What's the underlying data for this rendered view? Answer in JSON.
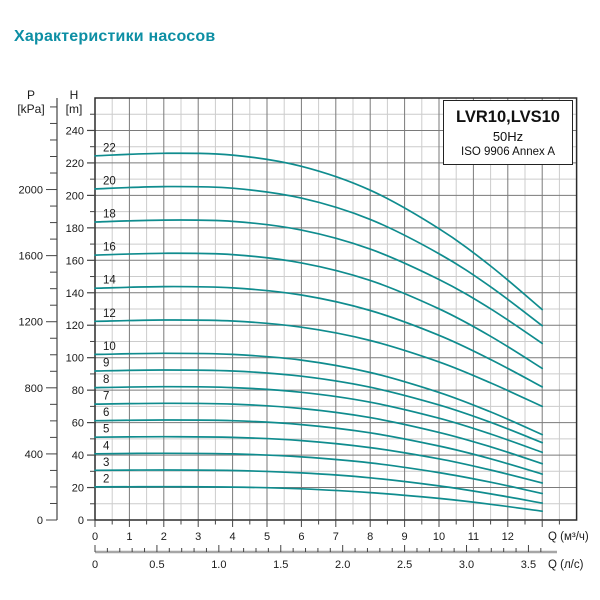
{
  "title": "Характеристики насосов",
  "info_box": {
    "model": "LVR10,LVS10",
    "frequency": "50Hz",
    "standard": "ISO 9906 Annex A"
  },
  "axes": {
    "pressure": {
      "name": "P",
      "unit": "[kPa]",
      "tick_labels": [
        0,
        400,
        800,
        1200,
        1600,
        2000
      ],
      "minor_step_kpa": 100,
      "axis_max_kpa": 2500
    },
    "head": {
      "name": "H",
      "unit": "[m]",
      "tick_labels": [
        0,
        20,
        40,
        60,
        80,
        100,
        120,
        140,
        160,
        180,
        200,
        220,
        240
      ],
      "minor_step_m": 10,
      "axis_max_m": 260
    },
    "flow_m3h": {
      "label": "Q (м³/ч)",
      "tick_labels": [
        0,
        1,
        2,
        3,
        4,
        5,
        6,
        7,
        8,
        9,
        10,
        11,
        12
      ],
      "minor_step": 0.5,
      "axis_max": 14
    },
    "flow_ls": {
      "label": "Q (л/с)",
      "tick_labels": [
        "0",
        "0.5",
        "1.0",
        "1.5",
        "2.0",
        "2.5",
        "3.0",
        "3.5"
      ],
      "minor_step": 0.1,
      "axis_max": 3.6
    }
  },
  "chart_data": {
    "type": "line",
    "title": "LVR10,LVS10 50Hz ISO 9906 Annex A",
    "xlabel": "Q (м³/ч)",
    "ylabel": "H [m]",
    "x_range": [
      0,
      14
    ],
    "y_range": [
      0,
      260
    ],
    "grid": "on",
    "curve_end_q": 13,
    "sample_q": [
      0,
      2,
      4,
      6,
      8,
      10,
      11.5,
      13
    ],
    "series": [
      {
        "name": "22",
        "heads": [
          224.4,
          225.9,
          224.8,
          217.9,
          203.2,
          179.5,
          156.5,
          129.6
        ]
      },
      {
        "name": "20",
        "heads": [
          204.0,
          205.4,
          204.4,
          198.3,
          185.2,
          164.1,
          143.7,
          119.7
        ]
      },
      {
        "name": "18",
        "heads": [
          183.6,
          184.8,
          184.0,
          178.6,
          166.9,
          148.2,
          130.1,
          108.8
        ]
      },
      {
        "name": "16",
        "heads": [
          163.2,
          164.3,
          163.5,
          158.4,
          147.6,
          130.1,
          113.2,
          93.4
        ]
      },
      {
        "name": "14",
        "heads": [
          142.8,
          143.8,
          143.0,
          138.6,
          129.1,
          113.8,
          98.9,
          82.0
        ]
      },
      {
        "name": "12",
        "heads": [
          122.4,
          123.2,
          122.6,
          118.8,
          110.6,
          97.4,
          84.5,
          70.0
        ]
      },
      {
        "name": "10",
        "heads": [
          102.0,
          102.7,
          102.0,
          98.5,
          90.9,
          78.6,
          66.6,
          52.6
        ]
      },
      {
        "name": "9",
        "heads": [
          91.8,
          92.4,
          91.8,
          88.6,
          81.8,
          70.9,
          60.2,
          47.6
        ]
      },
      {
        "name": "8",
        "heads": [
          81.6,
          82.1,
          81.6,
          78.7,
          72.6,
          62.7,
          53.0,
          41.7
        ]
      },
      {
        "name": "7",
        "heads": [
          71.4,
          71.9,
          71.4,
          68.7,
          63.1,
          54.0,
          45.1,
          34.7
        ]
      },
      {
        "name": "6",
        "heads": [
          61.2,
          61.6,
          61.2,
          58.8,
          53.7,
          45.6,
          37.7,
          28.3
        ]
      },
      {
        "name": "5",
        "heads": [
          51.0,
          51.3,
          50.9,
          48.9,
          44.6,
          37.7,
          30.8,
          22.8
        ]
      },
      {
        "name": "4",
        "heads": [
          40.8,
          41.1,
          40.7,
          38.9,
          35.2,
          29.2,
          23.3,
          16.3
        ]
      },
      {
        "name": "3",
        "heads": [
          30.6,
          30.8,
          30.5,
          29.0,
          26.0,
          21.0,
          16.1,
          10.4
        ]
      },
      {
        "name": "2",
        "heads": [
          20.4,
          20.5,
          20.3,
          19.2,
          16.9,
          13.3,
          9.7,
          5.4
        ]
      }
    ]
  },
  "colors": {
    "curve": "#0f8c8e",
    "title": "#0d8fa4",
    "grid_minor": "#cccccc",
    "grid_major": "#7a7a7a",
    "frame": "#2b2b2b",
    "tick": "#444444",
    "ls_axis": "#a6a6a6",
    "text": "#1a1a1a"
  }
}
